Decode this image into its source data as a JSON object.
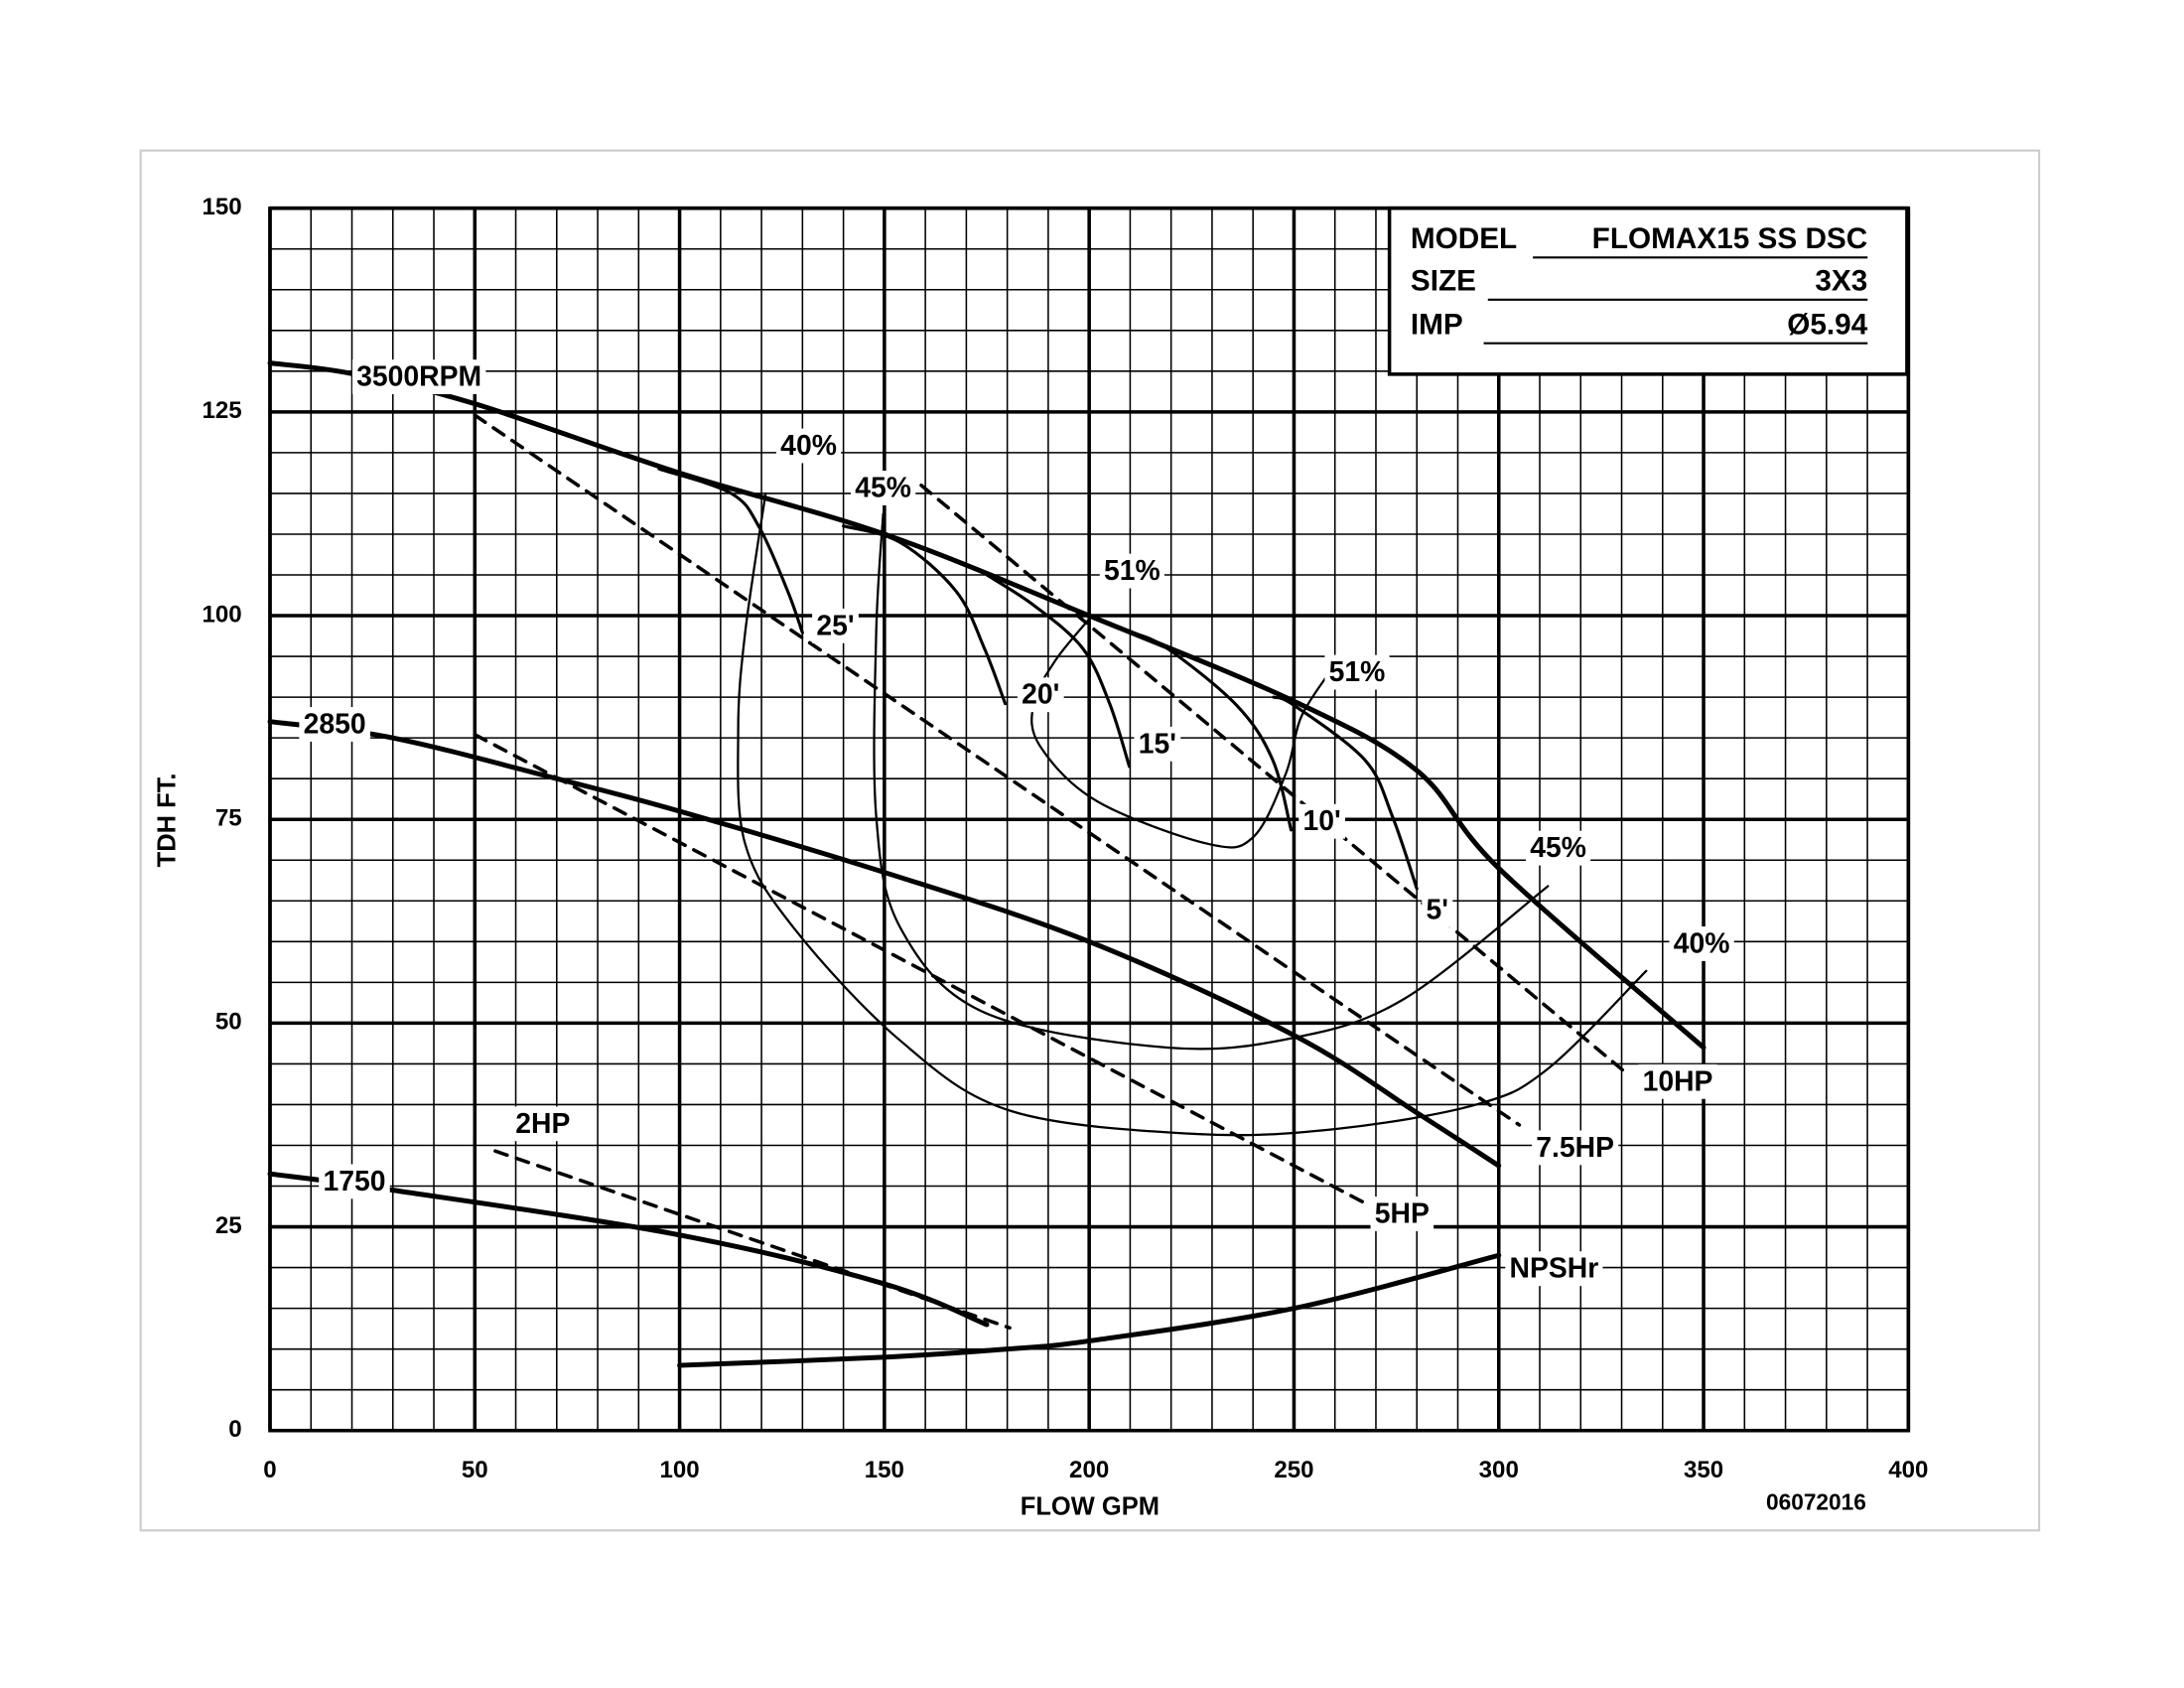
{
  "chart_data": {
    "type": "line",
    "x_label": "FLOW GPM",
    "y_label": "TDH FT.",
    "xlim": [
      0,
      400
    ],
    "ylim": [
      0,
      150
    ],
    "xticks": [
      0,
      50,
      100,
      150,
      200,
      250,
      300,
      350,
      400
    ],
    "yticks": [
      0,
      25,
      50,
      75,
      100,
      125,
      150
    ],
    "xminor": [
      0,
      10,
      20,
      30,
      40,
      50,
      60,
      70,
      80,
      90,
      100,
      110,
      120,
      130,
      140,
      150,
      160,
      170,
      180,
      190,
      200,
      210,
      220,
      230,
      240,
      250,
      260,
      270,
      280,
      290,
      300,
      310,
      320,
      330,
      340,
      350,
      360,
      370,
      380,
      390,
      400
    ],
    "yminor": [
      0,
      5,
      10,
      15,
      20,
      25,
      30,
      35,
      40,
      45,
      50,
      55,
      60,
      65,
      70,
      75,
      80,
      85,
      90,
      95,
      100,
      105,
      110,
      115,
      120,
      125,
      130,
      135,
      140,
      145,
      150
    ],
    "grid": true,
    "legend": {
      "model_label": "MODEL",
      "model": "FLOMAX15 SS DSC",
      "size_label": "SIZE",
      "size": "3X3",
      "imp_label": "IMP",
      "imp": "Ø5.94"
    },
    "date": "06072016",
    "series": [
      {
        "name": "3500RPM",
        "kind": "head",
        "color": "#000000",
        "x": [
          0,
          20,
          50,
          100,
          150,
          200,
          250,
          280,
          300,
          350
        ],
        "values": [
          131,
          129.7,
          126,
          117.5,
          110,
          100,
          89.5,
          81,
          69,
          47
        ]
      },
      {
        "name": "2850",
        "kind": "head",
        "color": "#000000",
        "x": [
          0,
          30,
          70,
          100,
          150,
          200,
          250,
          280,
          300
        ],
        "values": [
          87,
          85,
          80,
          76,
          68.5,
          60,
          48.5,
          39,
          32.5
        ]
      },
      {
        "name": "1750",
        "kind": "head",
        "color": "#000000",
        "x": [
          0,
          30,
          100,
          150,
          175
        ],
        "values": [
          31.5,
          29.5,
          24,
          18,
          13
        ]
      },
      {
        "name": "NPSHr",
        "kind": "head",
        "color": "#000000",
        "x": [
          100,
          150,
          180,
          200,
          250,
          300
        ],
        "values": [
          8,
          9,
          10,
          11,
          15,
          21.5
        ]
      },
      {
        "name": "10HP",
        "kind": "power",
        "color": "#000000",
        "x": [
          159,
          332
        ],
        "values": [
          116,
          43.5
        ]
      },
      {
        "name": "7.5HP",
        "kind": "power",
        "color": "#000000",
        "x": [
          50,
          305
        ],
        "values": [
          124.6,
          37.5
        ]
      },
      {
        "name": "5HP",
        "kind": "power",
        "color": "#000000",
        "x": [
          50,
          267
        ],
        "values": [
          85.4,
          28
        ]
      },
      {
        "name": "2HP",
        "kind": "power",
        "color": "#000000",
        "x": [
          55,
          180.6
        ],
        "values": [
          34.3,
          12.6
        ]
      },
      {
        "name": "40%",
        "labels": [
          "40%",
          "40%"
        ],
        "kind": "efficiency",
        "color": "#000000",
        "x": [
          121,
          116,
          114.3,
          116,
          128,
          154,
          181,
          226,
          260,
          294.5,
          312,
          336
        ],
        "values": [
          115,
          97.9,
          85.8,
          72,
          61.6,
          47.8,
          39.2,
          36.4,
          37,
          40,
          44.4,
          56.4
        ]
      },
      {
        "name": "45%",
        "labels": [
          "45%",
          "45%"
        ],
        "kind": "efficiency",
        "color": "#000000",
        "x": [
          149.7,
          148,
          148,
          154,
          174.4,
          219,
          250,
          277,
          312
        ],
        "values": [
          112.5,
          97.9,
          75.4,
          61.6,
          51.3,
          47,
          48.2,
          53,
          66.8
        ]
      },
      {
        "name": "51%",
        "labels": [
          "51%",
          "51%"
        ],
        "kind": "efficiency",
        "color": "#000000",
        "x": [
          200,
          191.6,
          186.4,
          188,
          202,
          229,
          240,
          248,
          251.7,
          258.6
        ],
        "values": [
          99.6,
          94.4,
          89.2,
          84,
          77.2,
          72,
          72.8,
          80.6,
          87.5,
          93
        ]
      },
      {
        "name": "25'",
        "kind": "suction",
        "color": "#000000",
        "x": [
          95,
          112.6,
          119.5,
          126.4,
          130
        ],
        "values": [
          118,
          115,
          110.8,
          103,
          97.9
        ]
      },
      {
        "name": "20'",
        "kind": "suction",
        "color": "#000000",
        "x": [
          140,
          153.8,
          167.5,
          174.4,
          179.5
        ],
        "values": [
          111,
          109,
          103,
          96,
          89.2
        ]
      },
      {
        "name": "15'",
        "kind": "suction",
        "color": "#000000",
        "x": [
          175,
          186.4,
          198.4,
          205,
          209.8
        ],
        "values": [
          105,
          101.3,
          96,
          89.2,
          81.5
        ]
      },
      {
        "name": "10'",
        "kind": "suction",
        "color": "#000000",
        "x": [
          210,
          219,
          236,
          244.8,
          249.3
        ],
        "values": [
          98,
          96,
          89,
          82.3,
          73.7
        ]
      },
      {
        "name": "5'",
        "kind": "suction",
        "color": "#000000",
        "x": [
          245,
          250,
          267.3,
          274,
          280
        ],
        "values": [
          90,
          89,
          82.3,
          75.4,
          66.5
        ]
      }
    ]
  }
}
